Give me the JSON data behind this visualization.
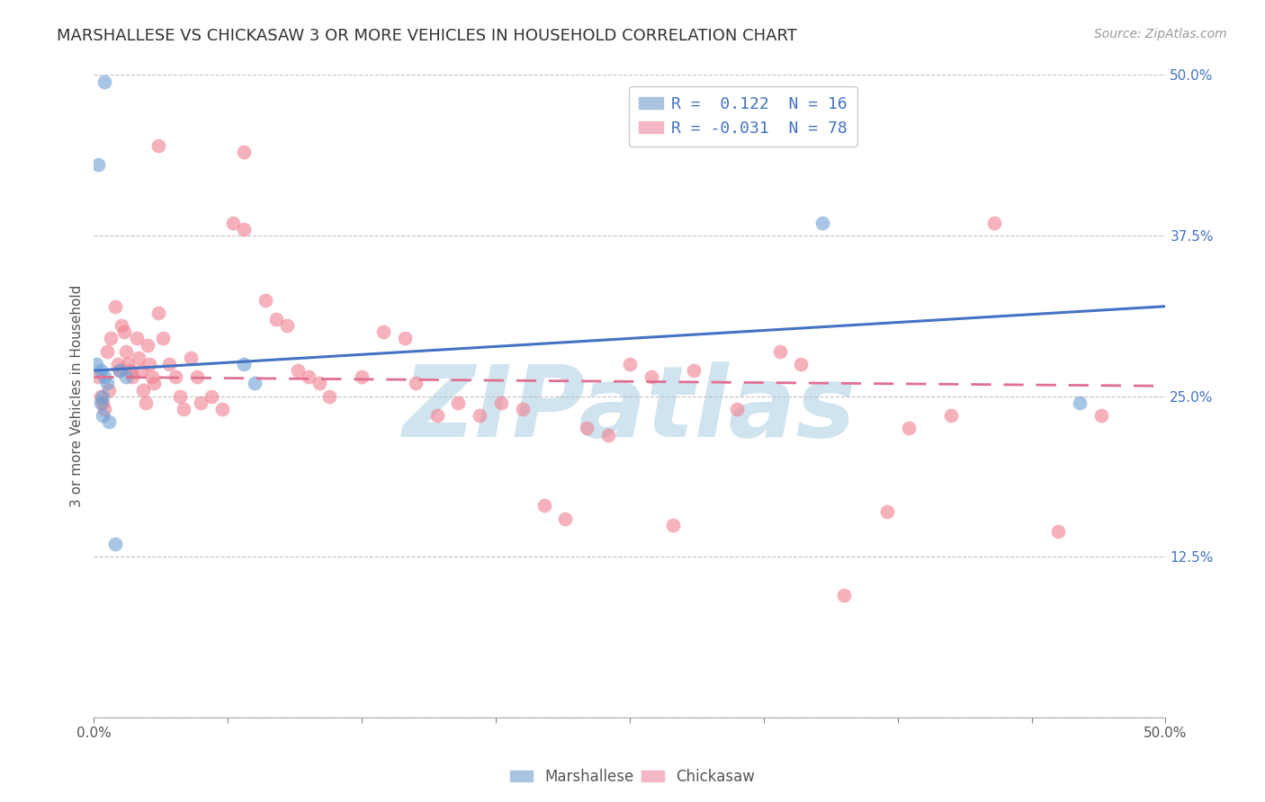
{
  "title": "MARSHALLESE VS CHICKASAW 3 OR MORE VEHICLES IN HOUSEHOLD CORRELATION CHART",
  "source": "Source: ZipAtlas.com",
  "ylabel": "3 or more Vehicles in Household",
  "xlim": [
    0.0,
    50.0
  ],
  "ylim": [
    0.0,
    50.0
  ],
  "yticks": [
    0.0,
    12.5,
    25.0,
    37.5,
    50.0
  ],
  "marshallese_points": [
    [
      0.5,
      49.5
    ],
    [
      0.2,
      43.0
    ],
    [
      0.1,
      27.5
    ],
    [
      0.3,
      27.0
    ],
    [
      0.5,
      26.5
    ],
    [
      0.6,
      26.0
    ],
    [
      0.4,
      25.0
    ],
    [
      0.3,
      24.5
    ],
    [
      0.4,
      23.5
    ],
    [
      0.7,
      23.0
    ],
    [
      1.2,
      27.0
    ],
    [
      1.5,
      26.5
    ],
    [
      7.0,
      27.5
    ],
    [
      7.5,
      26.0
    ],
    [
      34.0,
      38.5
    ],
    [
      46.0,
      24.5
    ],
    [
      1.0,
      13.5
    ]
  ],
  "chickasaw_points": [
    [
      0.2,
      26.5
    ],
    [
      0.3,
      25.0
    ],
    [
      0.4,
      24.5
    ],
    [
      0.5,
      24.0
    ],
    [
      0.6,
      28.5
    ],
    [
      0.7,
      25.5
    ],
    [
      0.8,
      29.5
    ],
    [
      1.0,
      32.0
    ],
    [
      1.1,
      27.5
    ],
    [
      1.2,
      27.0
    ],
    [
      1.3,
      30.5
    ],
    [
      1.4,
      30.0
    ],
    [
      1.5,
      28.5
    ],
    [
      1.6,
      27.5
    ],
    [
      1.7,
      27.0
    ],
    [
      1.8,
      26.5
    ],
    [
      2.0,
      29.5
    ],
    [
      2.1,
      28.0
    ],
    [
      2.2,
      27.0
    ],
    [
      2.3,
      25.5
    ],
    [
      2.4,
      24.5
    ],
    [
      2.5,
      29.0
    ],
    [
      2.6,
      27.5
    ],
    [
      2.7,
      26.5
    ],
    [
      2.8,
      26.0
    ],
    [
      3.0,
      31.5
    ],
    [
      3.2,
      29.5
    ],
    [
      3.5,
      27.5
    ],
    [
      3.8,
      26.5
    ],
    [
      4.0,
      25.0
    ],
    [
      4.2,
      24.0
    ],
    [
      4.5,
      28.0
    ],
    [
      4.8,
      26.5
    ],
    [
      5.0,
      24.5
    ],
    [
      5.5,
      25.0
    ],
    [
      6.0,
      24.0
    ],
    [
      6.5,
      38.5
    ],
    [
      7.0,
      38.0
    ],
    [
      8.0,
      32.5
    ],
    [
      8.5,
      31.0
    ],
    [
      9.0,
      30.5
    ],
    [
      9.5,
      27.0
    ],
    [
      10.0,
      26.5
    ],
    [
      10.5,
      26.0
    ],
    [
      11.0,
      25.0
    ],
    [
      12.5,
      26.5
    ],
    [
      13.5,
      30.0
    ],
    [
      14.5,
      29.5
    ],
    [
      15.0,
      26.0
    ],
    [
      16.0,
      23.5
    ],
    [
      17.0,
      24.5
    ],
    [
      18.0,
      23.5
    ],
    [
      19.0,
      24.5
    ],
    [
      20.0,
      24.0
    ],
    [
      21.0,
      16.5
    ],
    [
      22.0,
      15.5
    ],
    [
      23.0,
      22.5
    ],
    [
      24.0,
      22.0
    ],
    [
      25.0,
      27.5
    ],
    [
      26.0,
      26.5
    ],
    [
      27.0,
      15.0
    ],
    [
      28.0,
      27.0
    ],
    [
      30.0,
      24.0
    ],
    [
      32.0,
      28.5
    ],
    [
      33.0,
      27.5
    ],
    [
      35.0,
      9.5
    ],
    [
      37.0,
      16.0
    ],
    [
      38.0,
      22.5
    ],
    [
      40.0,
      23.5
    ],
    [
      42.0,
      38.5
    ],
    [
      45.0,
      14.5
    ],
    [
      47.0,
      23.5
    ],
    [
      3.0,
      44.5
    ],
    [
      7.0,
      44.0
    ]
  ],
  "blue_color": "#6ca0d4",
  "pink_color": "#f08090",
  "blue_line_color": "#4472c4",
  "pink_line_color": "#e07090",
  "background_color": "#ffffff",
  "watermark": "ZIPatlas",
  "watermark_color": "#d0e4f0",
  "point_size": 130,
  "title_fontsize": 13,
  "axis_label_fontsize": 11,
  "tick_fontsize": 11,
  "legend_fontsize": 13,
  "source_fontsize": 10,
  "blue_line_start_y": 27.0,
  "blue_line_end_y": 32.0,
  "pink_line_start_y": 26.5,
  "pink_line_end_y": 25.8
}
